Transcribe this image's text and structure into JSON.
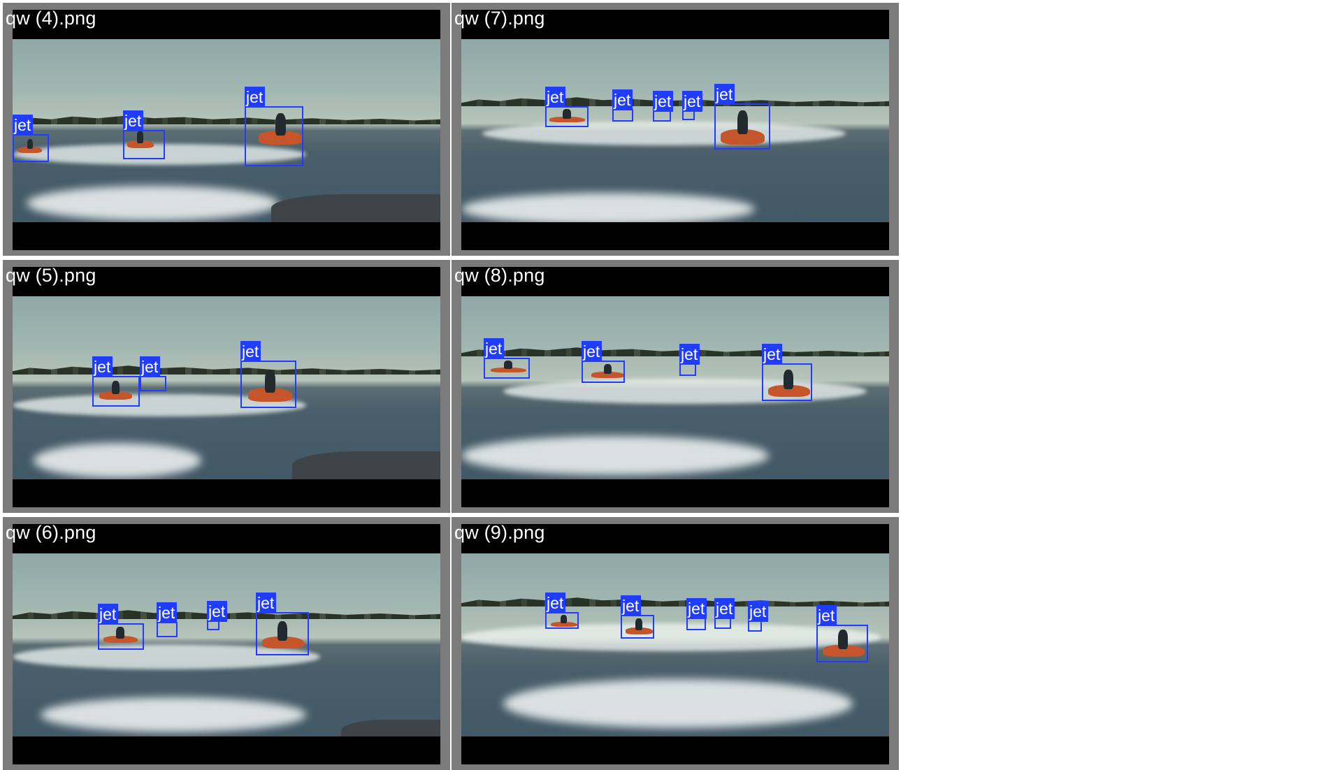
{
  "tiles": [
    {
      "title": "qw (4).png",
      "label": "jet"
    },
    {
      "title": "qw (7).png",
      "label": "jet"
    },
    {
      "title": "qw (5).png",
      "label": "jet"
    },
    {
      "title": "qw (8).png",
      "label": "jet"
    },
    {
      "title": "qw (6).png",
      "label": "jet"
    },
    {
      "title": "qw (9).png",
      "label": "jet"
    }
  ],
  "colors": {
    "box": "#1f3cff",
    "tile_bg": "#7b7b7b",
    "letterbox": "#000000"
  }
}
